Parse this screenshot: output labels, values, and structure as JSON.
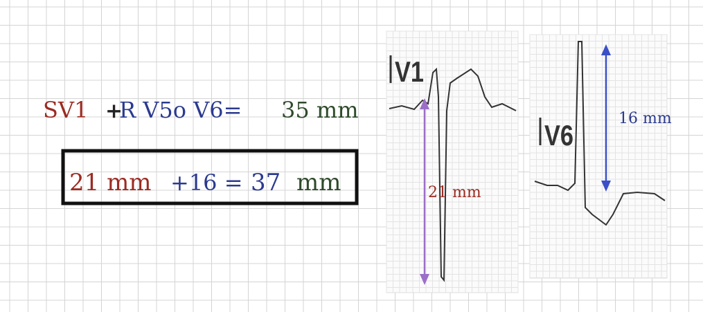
{
  "formula": {
    "sv1": "SV1",
    "plus": "+",
    "rv5v6": "R V5o V6=",
    "total": "35 mm"
  },
  "example": {
    "s_value": "21 mm",
    "r_value": "+16 =",
    "sum": "37",
    "unit": "mm"
  },
  "leads": [
    {
      "label": "V1",
      "measure": "21 mm"
    },
    {
      "label": "V6",
      "measure": "16 mm"
    }
  ]
}
